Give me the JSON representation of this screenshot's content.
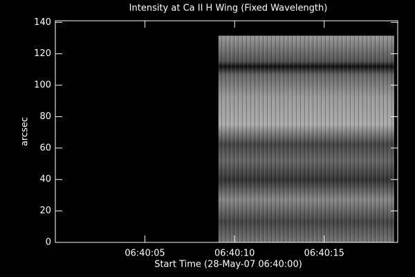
{
  "chart_data": {
    "type": "image",
    "title": "Intensity at Ca II H Wing (Fixed Wavelength)",
    "x_label": "Start Time (28-May-07 06:40:00)",
    "y_label": "arcsec",
    "xlim": [
      0,
      19.1
    ],
    "ylim": [
      0,
      141
    ],
    "xticks": [
      {
        "value": 5,
        "label": "06:40:05"
      },
      {
        "value": 10,
        "label": "06:40:10"
      },
      {
        "value": 15,
        "label": "06:40:15"
      }
    ],
    "yticks": [
      0,
      20,
      40,
      60,
      80,
      100,
      120,
      140
    ],
    "image": {
      "x": [
        9.1,
        18.9
      ],
      "y": [
        0,
        131.5
      ]
    }
  }
}
